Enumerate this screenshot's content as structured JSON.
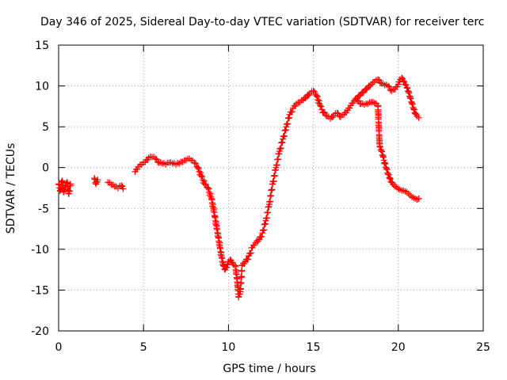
{
  "chart_data": {
    "type": "scatter",
    "title": "Day 346 of 2025, Sidereal Day-to-day VTEC variation (SDTVAR) for receiver terc",
    "xlabel": "GPS time / hours",
    "ylabel": "SDTVAR / TECUs",
    "xlim": [
      0,
      25
    ],
    "ylim": [
      -20,
      15
    ],
    "xticks": [
      0,
      5,
      10,
      15,
      20,
      25
    ],
    "yticks": [
      -20,
      -15,
      -10,
      -5,
      0,
      5,
      10,
      15
    ],
    "xtick_labels": [
      "0",
      "5",
      "10",
      "15",
      "20",
      "25"
    ],
    "ytick_labels": [
      "-20",
      "-15",
      "-10",
      "-5",
      "0",
      "5",
      "10",
      "15"
    ],
    "grid": true,
    "marker": "+",
    "color": "#ff0000",
    "series": [
      {
        "name": "SDTVAR",
        "points": [
          [
            0.0,
            -2.0
          ],
          [
            0.1,
            -2.8
          ],
          [
            0.2,
            -1.6
          ],
          [
            0.3,
            -3.0
          ],
          [
            0.4,
            -2.2
          ],
          [
            0.5,
            -1.8
          ],
          [
            0.6,
            -3.2
          ],
          [
            0.7,
            -2.0
          ],
          [
            2.1,
            -1.3
          ],
          [
            2.2,
            -2.0
          ],
          [
            2.3,
            -1.5
          ],
          [
            2.9,
            -1.8
          ],
          [
            3.1,
            -2.1
          ],
          [
            3.3,
            -2.3
          ],
          [
            3.5,
            -2.5
          ],
          [
            3.7,
            -2.2
          ],
          [
            3.8,
            -2.6
          ],
          [
            4.5,
            -0.5
          ],
          [
            4.7,
            0.1
          ],
          [
            4.9,
            0.4
          ],
          [
            5.1,
            0.7
          ],
          [
            5.3,
            1.2
          ],
          [
            5.5,
            1.3
          ],
          [
            5.7,
            1.1
          ],
          [
            5.9,
            0.6
          ],
          [
            6.1,
            0.5
          ],
          [
            6.3,
            0.4
          ],
          [
            6.5,
            0.6
          ],
          [
            6.7,
            0.5
          ],
          [
            6.9,
            0.4
          ],
          [
            7.1,
            0.5
          ],
          [
            7.3,
            0.7
          ],
          [
            7.5,
            0.9
          ],
          [
            7.7,
            1.1
          ],
          [
            7.8,
            0.9
          ],
          [
            8.0,
            0.6
          ],
          [
            8.2,
            0.0
          ],
          [
            8.4,
            -1.0
          ],
          [
            8.6,
            -2.0
          ],
          [
            8.8,
            -2.5
          ],
          [
            9.0,
            -3.8
          ],
          [
            9.2,
            -6.0
          ],
          [
            9.4,
            -8.5
          ],
          [
            9.5,
            -9.8
          ],
          [
            9.6,
            -11.0
          ],
          [
            9.7,
            -12.0
          ],
          [
            9.8,
            -12.5
          ],
          [
            9.9,
            -12.2
          ],
          [
            10.0,
            -11.5
          ],
          [
            10.1,
            -11.3
          ],
          [
            10.2,
            -11.6
          ],
          [
            10.3,
            -11.9
          ],
          [
            10.4,
            -12.0
          ],
          [
            10.5,
            -13.5
          ],
          [
            10.6,
            -15.8
          ],
          [
            10.7,
            -15.2
          ],
          [
            10.8,
            -12.0
          ],
          [
            11.0,
            -11.5
          ],
          [
            11.2,
            -10.8
          ],
          [
            11.4,
            -9.8
          ],
          [
            11.6,
            -9.2
          ],
          [
            11.8,
            -8.8
          ],
          [
            12.0,
            -8.0
          ],
          [
            12.2,
            -6.5
          ],
          [
            12.4,
            -4.5
          ],
          [
            12.6,
            -2.0
          ],
          [
            12.8,
            0.0
          ],
          [
            13.0,
            2.0
          ],
          [
            13.2,
            3.5
          ],
          [
            13.4,
            5.0
          ],
          [
            13.6,
            6.5
          ],
          [
            13.8,
            7.3
          ],
          [
            14.0,
            7.8
          ],
          [
            14.2,
            8.0
          ],
          [
            14.4,
            8.3
          ],
          [
            14.6,
            8.7
          ],
          [
            14.8,
            9.1
          ],
          [
            15.0,
            9.4
          ],
          [
            15.2,
            8.8
          ],
          [
            15.4,
            7.6
          ],
          [
            15.6,
            6.8
          ],
          [
            15.8,
            6.3
          ],
          [
            16.0,
            6.0
          ],
          [
            16.2,
            6.4
          ],
          [
            16.4,
            6.7
          ],
          [
            16.6,
            6.2
          ],
          [
            16.8,
            6.5
          ],
          [
            17.0,
            7.0
          ],
          [
            17.2,
            7.6
          ],
          [
            17.4,
            8.2
          ],
          [
            17.6,
            8.6
          ],
          [
            17.8,
            9.0
          ],
          [
            18.0,
            9.4
          ],
          [
            18.2,
            9.8
          ],
          [
            18.4,
            10.2
          ],
          [
            18.6,
            10.5
          ],
          [
            18.8,
            10.8
          ],
          [
            19.0,
            10.3
          ],
          [
            19.2,
            10.1
          ],
          [
            19.4,
            10.0
          ],
          [
            19.6,
            9.4
          ],
          [
            19.8,
            9.6
          ],
          [
            20.0,
            10.2
          ],
          [
            20.1,
            10.8
          ],
          [
            20.2,
            11.0
          ],
          [
            20.3,
            10.6
          ],
          [
            20.4,
            10.2
          ],
          [
            20.5,
            9.8
          ],
          [
            20.6,
            9.3
          ],
          [
            20.7,
            8.6
          ],
          [
            20.8,
            7.9
          ],
          [
            20.9,
            7.2
          ],
          [
            21.0,
            6.6
          ],
          [
            21.1,
            6.3
          ],
          [
            21.2,
            6.1
          ],
          [
            17.6,
            8.2
          ],
          [
            17.8,
            7.8
          ],
          [
            18.0,
            7.7
          ],
          [
            18.2,
            7.8
          ],
          [
            18.4,
            8.0
          ],
          [
            18.6,
            7.9
          ],
          [
            18.8,
            7.6
          ],
          [
            18.9,
            2.6
          ],
          [
            19.0,
            2.1
          ],
          [
            19.1,
            1.4
          ],
          [
            19.2,
            0.6
          ],
          [
            19.3,
            -0.1
          ],
          [
            19.4,
            -0.8
          ],
          [
            19.5,
            -1.3
          ],
          [
            19.6,
            -1.8
          ],
          [
            19.7,
            -2.1
          ],
          [
            19.8,
            -2.3
          ],
          [
            19.9,
            -2.4
          ],
          [
            20.0,
            -2.6
          ],
          [
            20.1,
            -2.7
          ],
          [
            20.2,
            -2.8
          ],
          [
            20.3,
            -2.8
          ],
          [
            20.4,
            -2.9
          ],
          [
            20.5,
            -3.0
          ],
          [
            20.6,
            -3.2
          ],
          [
            20.7,
            -3.4
          ],
          [
            20.8,
            -3.6
          ],
          [
            20.9,
            -3.7
          ],
          [
            21.0,
            -3.8
          ],
          [
            21.1,
            -3.9
          ],
          [
            21.2,
            -3.8
          ]
        ]
      }
    ]
  }
}
